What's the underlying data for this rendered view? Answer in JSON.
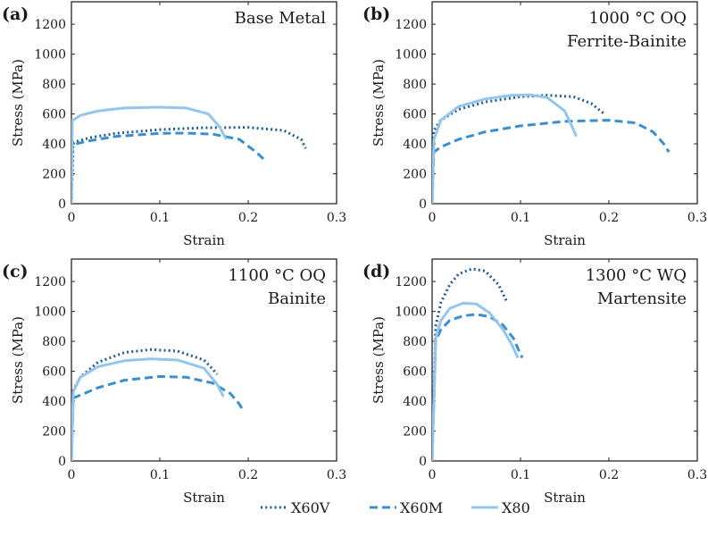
{
  "legend": [
    {
      "name": "X60V",
      "color": "#1f5c94",
      "dash": "dotted"
    },
    {
      "name": "X60M",
      "color": "#3a8fd0",
      "dash": "dashed"
    },
    {
      "name": "X80",
      "color": "#93c6ef",
      "dash": "solid"
    }
  ],
  "chart_data": [
    {
      "type": "line",
      "panel_label": "(a)",
      "annotation": [
        "Base Metal"
      ],
      "xlabel": "Strain",
      "ylabel": "Stress (MPa)",
      "xlim": [
        0,
        0.3
      ],
      "ylim": [
        0,
        1350
      ],
      "xticks": [
        0,
        0.1,
        0.2,
        0.3
      ],
      "xtick_labels": [
        "0",
        "0.1",
        "0.2",
        "0.3"
      ],
      "yticks": [
        0,
        200,
        400,
        600,
        800,
        1000,
        1200
      ],
      "series": [
        {
          "name": "X60V",
          "x": [
            0,
            0.002,
            0.02,
            0.05,
            0.1,
            0.15,
            0.2,
            0.24,
            0.26,
            0.265
          ],
          "y": [
            0,
            410,
            440,
            470,
            495,
            508,
            510,
            490,
            430,
            370
          ]
        },
        {
          "name": "X60M",
          "x": [
            0,
            0.001,
            0.005,
            0.02,
            0.05,
            0.1,
            0.13,
            0.16,
            0.19,
            0.21,
            0.218
          ],
          "y": [
            0,
            390,
            400,
            420,
            450,
            470,
            472,
            465,
            430,
            340,
            295
          ]
        },
        {
          "name": "X80",
          "x": [
            0,
            0.001,
            0.01,
            0.03,
            0.06,
            0.1,
            0.13,
            0.155,
            0.168,
            0.175
          ],
          "y": [
            0,
            555,
            590,
            620,
            640,
            645,
            640,
            600,
            510,
            430
          ]
        }
      ]
    },
    {
      "type": "line",
      "panel_label": "(b)",
      "annotation": [
        "1000 °C OQ",
        "Ferrite-Bainite"
      ],
      "xlabel": "Strain",
      "ylabel": "Stress (MPa)",
      "xlim": [
        0,
        0.3
      ],
      "ylim": [
        0,
        1350
      ],
      "xticks": [
        0,
        0.1,
        0.2,
        0.3
      ],
      "xtick_labels": [
        "0",
        "0.1",
        "0.2",
        "0.3"
      ],
      "yticks": [
        0,
        200,
        400,
        600,
        800,
        1000,
        1200
      ],
      "series": [
        {
          "name": "X60V",
          "x": [
            0,
            0.002,
            0.01,
            0.03,
            0.06,
            0.1,
            0.13,
            0.16,
            0.18,
            0.195
          ],
          "y": [
            0,
            490,
            560,
            630,
            680,
            715,
            725,
            715,
            670,
            600
          ]
        },
        {
          "name": "X60M",
          "x": [
            0,
            0.002,
            0.01,
            0.03,
            0.06,
            0.1,
            0.15,
            0.2,
            0.23,
            0.25,
            0.262,
            0.268
          ],
          "y": [
            0,
            345,
            380,
            430,
            480,
            520,
            550,
            558,
            540,
            480,
            400,
            345
          ]
        },
        {
          "name": "X80",
          "x": [
            0,
            0.002,
            0.01,
            0.03,
            0.06,
            0.09,
            0.11,
            0.13,
            0.15,
            0.158,
            0.163
          ],
          "y": [
            0,
            430,
            560,
            650,
            700,
            725,
            728,
            710,
            620,
            520,
            450
          ]
        }
      ]
    },
    {
      "type": "line",
      "panel_label": "(c)",
      "annotation": [
        "1100 °C OQ",
        "Bainite"
      ],
      "xlabel": "Strain",
      "ylabel": "Stress (MPa)",
      "xlim": [
        0,
        0.3
      ],
      "ylim": [
        0,
        1350
      ],
      "xticks": [
        0,
        0.1,
        0.2,
        0.3
      ],
      "xtick_labels": [
        "0",
        "0.1",
        "0.2",
        "0.3"
      ],
      "yticks": [
        0,
        200,
        400,
        600,
        800,
        1000,
        1200
      ],
      "series": [
        {
          "name": "X60V",
          "x": [
            0,
            0.002,
            0.01,
            0.03,
            0.06,
            0.09,
            0.12,
            0.15,
            0.165
          ],
          "y": [
            0,
            470,
            560,
            660,
            725,
            745,
            735,
            675,
            580
          ]
        },
        {
          "name": "X60M",
          "x": [
            0,
            0.002,
            0.01,
            0.03,
            0.06,
            0.1,
            0.13,
            0.16,
            0.18,
            0.19,
            0.195
          ],
          "y": [
            0,
            420,
            440,
            490,
            540,
            565,
            560,
            520,
            450,
            380,
            330
          ]
        },
        {
          "name": "X80",
          "x": [
            0,
            0.002,
            0.01,
            0.03,
            0.06,
            0.09,
            0.12,
            0.15,
            0.165,
            0.172
          ],
          "y": [
            0,
            460,
            560,
            630,
            670,
            682,
            675,
            620,
            510,
            430
          ]
        }
      ]
    },
    {
      "type": "line",
      "panel_label": "(d)",
      "annotation": [
        "1300 °C WQ",
        "Martensite"
      ],
      "xlabel": "Strain",
      "ylabel": "Stress (MPa)",
      "xlim": [
        0,
        0.3
      ],
      "ylim": [
        0,
        1350
      ],
      "xticks": [
        0,
        0.1,
        0.2,
        0.3
      ],
      "xtick_labels": [
        "0",
        "0.1",
        "0.2",
        "0.3"
      ],
      "yticks": [
        0,
        200,
        400,
        600,
        800,
        1000,
        1200
      ],
      "series": [
        {
          "name": "X60V",
          "x": [
            0,
            0.004,
            0.01,
            0.02,
            0.03,
            0.045,
            0.06,
            0.075,
            0.085
          ],
          "y": [
            0,
            900,
            1060,
            1180,
            1250,
            1285,
            1270,
            1180,
            1060
          ]
        },
        {
          "name": "X60M",
          "x": [
            0,
            0.004,
            0.01,
            0.02,
            0.035,
            0.05,
            0.065,
            0.08,
            0.092,
            0.098,
            0.102
          ],
          "y": [
            0,
            800,
            880,
            940,
            970,
            980,
            965,
            910,
            820,
            740,
            690
          ]
        },
        {
          "name": "X80",
          "x": [
            0,
            0.004,
            0.01,
            0.02,
            0.035,
            0.05,
            0.065,
            0.08,
            0.09,
            0.097
          ],
          "y": [
            0,
            820,
            940,
            1020,
            1055,
            1050,
            990,
            880,
            780,
            690
          ]
        }
      ]
    }
  ]
}
